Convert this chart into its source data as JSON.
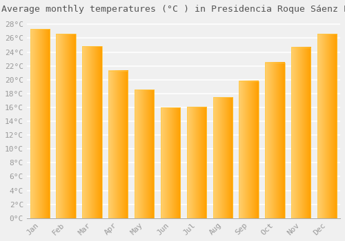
{
  "title": "Average monthly temperatures (°C ) in Presidencia Roque Sáenz Peña",
  "months": [
    "Jan",
    "Feb",
    "Mar",
    "Apr",
    "May",
    "Jun",
    "Jul",
    "Aug",
    "Sep",
    "Oct",
    "Nov",
    "Dec"
  ],
  "values": [
    27.3,
    26.6,
    24.8,
    21.3,
    18.6,
    16.0,
    16.1,
    17.5,
    19.8,
    22.5,
    24.7,
    26.6
  ],
  "bar_color_main": "#FFA500",
  "bar_color_light": "#FFD060",
  "background_color": "#F0F0F0",
  "plot_bg_color": "#F0F0F0",
  "grid_color": "#FFFFFF",
  "ylim": [
    0,
    29
  ],
  "ytick_step": 2,
  "title_fontsize": 9.5,
  "tick_fontsize": 8,
  "tick_color": "#999999",
  "title_color": "#555555",
  "spine_color": "#AAAAAA"
}
